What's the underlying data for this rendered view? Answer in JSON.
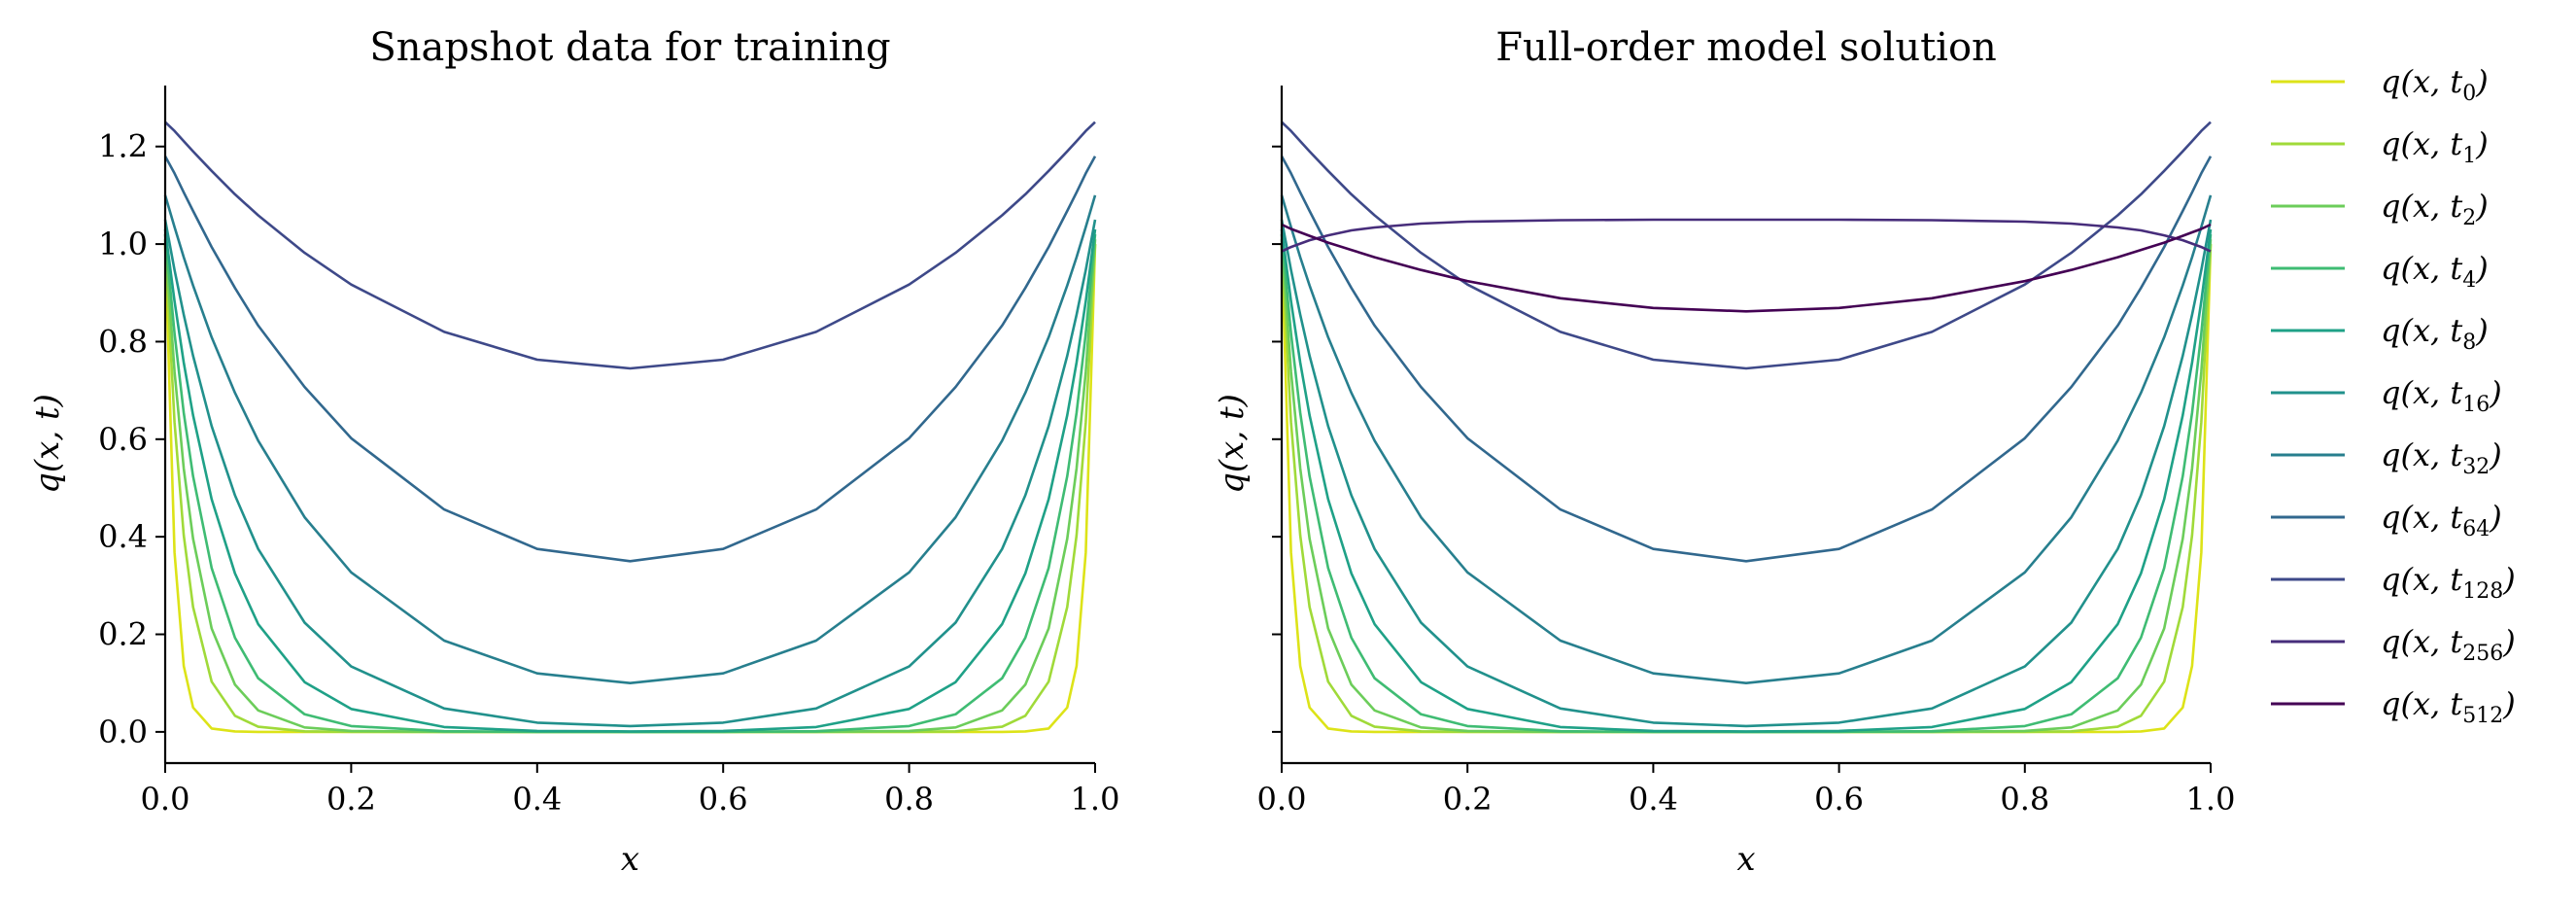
{
  "chart_data": [
    {
      "type": "line",
      "title": "Snapshot data for training",
      "xlabel": "x",
      "ylabel": "q(x, t)",
      "xlim": [
        0,
        1
      ],
      "ylim": [
        -0.064,
        1.325
      ],
      "xticks": [
        "0.0",
        "0.2",
        "0.4",
        "0.6",
        "0.8",
        "1.0"
      ],
      "yticks": [
        "0.0",
        "0.2",
        "0.4",
        "0.6",
        "0.8",
        "1.0",
        "1.2"
      ],
      "series_ids": [
        "t0",
        "t1",
        "t2",
        "t4",
        "t8",
        "t16",
        "t32",
        "t64",
        "t128"
      ]
    },
    {
      "type": "line",
      "title": "Full-order model solution",
      "xlabel": "x",
      "ylabel": "q(x, t)",
      "xlim": [
        0,
        1
      ],
      "ylim": [
        -0.064,
        1.325
      ],
      "xticks": [
        "0.0",
        "0.2",
        "0.4",
        "0.6",
        "0.8",
        "1.0"
      ],
      "yticks": [
        "0.0",
        "0.2",
        "0.4",
        "0.6",
        "0.8",
        "1.0",
        "1.2"
      ],
      "show_ytick_labels": false,
      "series_ids": [
        "t0",
        "t1",
        "t2",
        "t4",
        "t8",
        "t16",
        "t32",
        "t64",
        "t128",
        "t256",
        "t512"
      ]
    }
  ],
  "x_half_grid": [
    0,
    0.01,
    0.02,
    0.03,
    0.05,
    0.075,
    0.1,
    0.15,
    0.2,
    0.3,
    0.4,
    0.5
  ],
  "symmetric_about": 0.5,
  "series": [
    {
      "id": "t0",
      "name": "q(x, t",
      "sub": "0",
      "color": "#dde318",
      "y": [
        1.0,
        0.368,
        0.135,
        0.05,
        0.007,
        0.001,
        0,
        0,
        0,
        0,
        0,
        0
      ]
    },
    {
      "id": "t1",
      "name": "q(x, t",
      "sub": "1",
      "color": "#a0da39",
      "y": [
        1.0,
        0.635,
        0.403,
        0.256,
        0.103,
        0.033,
        0.0106,
        0.0011,
        0.0001,
        0,
        0,
        0
      ]
    },
    {
      "id": "t2",
      "name": "q(x, t",
      "sub": "2",
      "color": "#6ccd5a",
      "y": [
        1.01,
        0.739,
        0.54,
        0.396,
        0.212,
        0.097,
        0.044,
        0.0092,
        0.0019,
        0.0001,
        0,
        0
      ]
    },
    {
      "id": "t4",
      "name": "q(x, t",
      "sub": "4",
      "color": "#3fbc73",
      "y": [
        1.02,
        0.817,
        0.654,
        0.524,
        0.336,
        0.193,
        0.11,
        0.036,
        0.012,
        0.0013,
        0.0001,
        0
      ]
    },
    {
      "id": "t8",
      "name": "q(x, t",
      "sub": "8",
      "color": "#1fa187",
      "y": [
        1.03,
        0.883,
        0.757,
        0.649,
        0.477,
        0.325,
        0.221,
        0.102,
        0.047,
        0.01,
        0.002,
        0.001
      ]
    },
    {
      "id": "t16",
      "name": "q(x, t",
      "sub": "16",
      "color": "#21918c",
      "y": [
        1.05,
        0.947,
        0.855,
        0.771,
        0.627,
        0.485,
        0.375,
        0.224,
        0.134,
        0.048,
        0.019,
        0.012
      ]
    },
    {
      "id": "t32",
      "name": "q(x, t",
      "sub": "32",
      "color": "#277f8e",
      "y": [
        1.1,
        1.035,
        0.973,
        0.915,
        0.809,
        0.695,
        0.597,
        0.44,
        0.327,
        0.187,
        0.12,
        0.1
      ]
    },
    {
      "id": "t64",
      "name": "q(x, t",
      "sub": "64",
      "color": "#31688e",
      "y": [
        1.18,
        1.145,
        1.106,
        1.068,
        0.994,
        0.91,
        0.833,
        0.707,
        0.602,
        0.456,
        0.375,
        0.35
      ]
    },
    {
      "id": "t128",
      "name": "q(x, t",
      "sub": "128",
      "color": "#3e4989",
      "y": [
        1.25,
        1.232,
        1.211,
        1.19,
        1.15,
        1.102,
        1.059,
        0.982,
        0.917,
        0.82,
        0.763,
        0.745
      ]
    },
    {
      "id": "t256",
      "name": "q(x, t",
      "sub": "256",
      "color": "#472d7b",
      "y": [
        0.985,
        0.994,
        1.001,
        1.008,
        1.018,
        1.028,
        1.034,
        1.042,
        1.046,
        1.049,
        1.05,
        1.05
      ]
    },
    {
      "id": "t512",
      "name": "q(x, t",
      "sub": "512",
      "color": "#440154",
      "y": [
        1.04,
        1.031,
        1.024,
        1.017,
        1.003,
        0.988,
        0.973,
        0.947,
        0.924,
        0.889,
        0.869,
        0.862
      ]
    }
  ],
  "legend": {
    "placement": "right"
  }
}
